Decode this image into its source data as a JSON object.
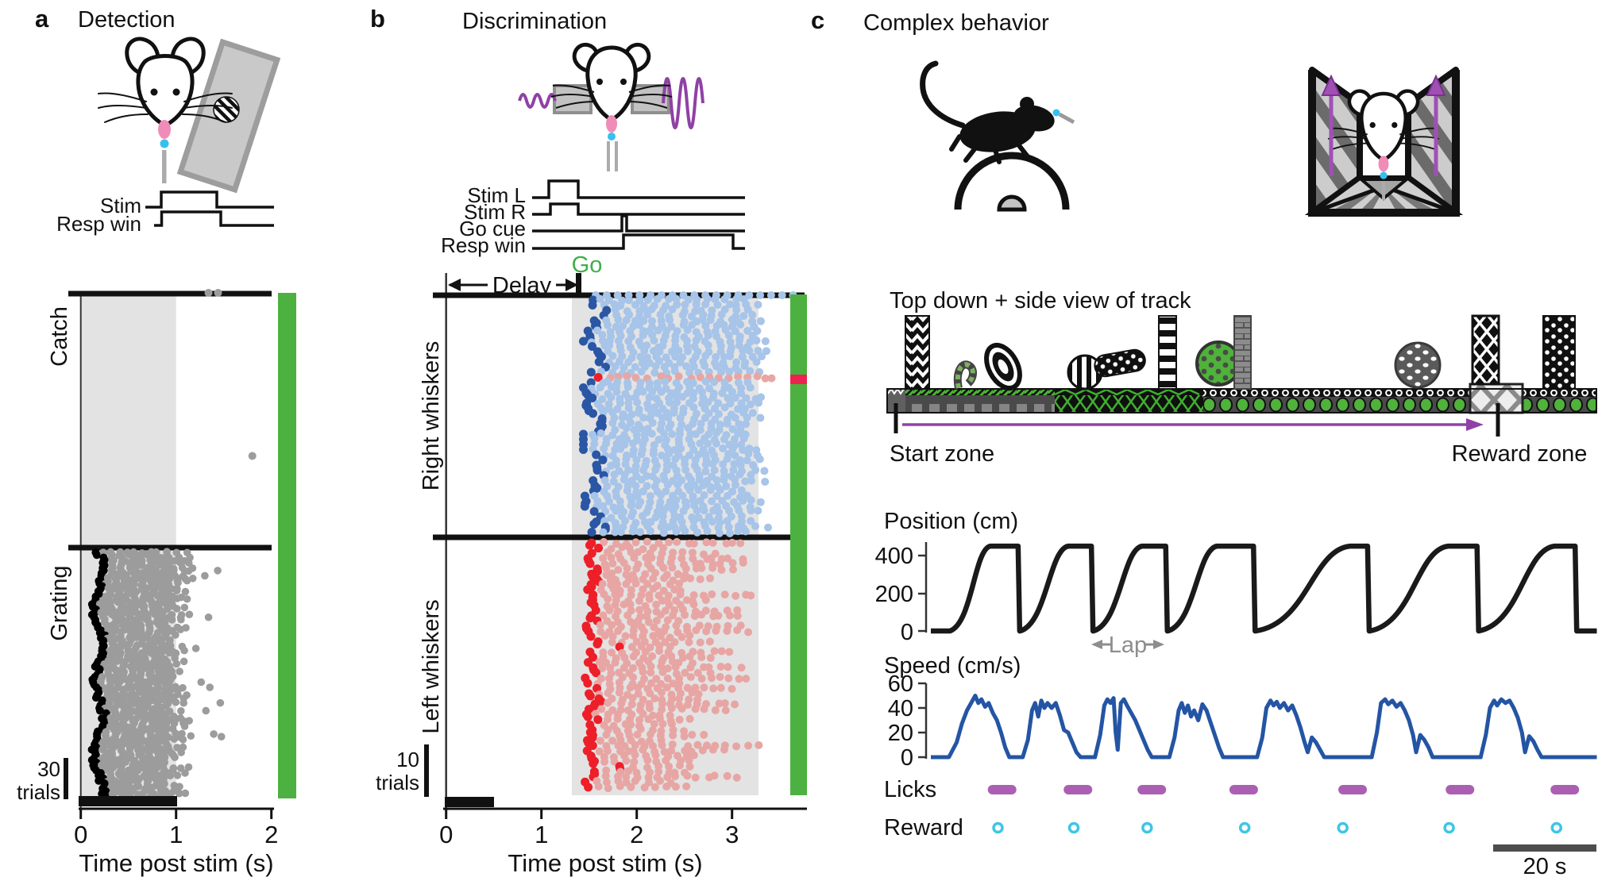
{
  "panels": {
    "a": {
      "letter": "a",
      "title": "Detection",
      "timing_labels": [
        "Stim",
        "Resp win"
      ],
      "section_labels": [
        "Catch",
        "Grating"
      ],
      "scale_bar": {
        "value": "30",
        "unit": "trials"
      },
      "x_ticks": [
        "0",
        "1",
        "2"
      ],
      "x_axis_label": "Time post stim (s)"
    },
    "b": {
      "letter": "b",
      "title": "Discrimination",
      "timing_labels": [
        "Stim L",
        "Stim R",
        "Go cue",
        "Resp win"
      ],
      "delay_label": "Delay",
      "go_label": "Go",
      "section_labels": [
        "Right whiskers",
        "Left whiskers"
      ],
      "scale_bar": {
        "value": "10",
        "unit": "trials"
      },
      "x_ticks": [
        "0",
        "1",
        "2",
        "3"
      ],
      "x_axis_label": "Time post stim (s)"
    },
    "c": {
      "letter": "c",
      "title": "Complex behavior",
      "track_caption": "Top down + side view of track",
      "start_zone_label": "Start zone",
      "reward_zone_label": "Reward zone",
      "position_label": "Position (cm)",
      "position_ticks": [
        "400",
        "200",
        "0"
      ],
      "lap_label": "Lap",
      "speed_label": "Speed (cm/s)",
      "speed_ticks": [
        "60",
        "40",
        "20",
        "0"
      ],
      "licks_label": "Licks",
      "reward_label": "Reward",
      "time_scale_label": "20 s"
    }
  },
  "colors": {
    "first_lick": "#000000",
    "later_lick": "#9C9C9C",
    "right_first": "#2A56A5",
    "right_later": "#A7C4E9",
    "left_first": "#ED1F28",
    "left_later": "#E7A6A4",
    "correct_bar": "#4CB140",
    "error_bar": "#EE2150",
    "shading": "#E3E3E3",
    "speed_trace": "#2455A4",
    "position_trace": "#1A1A1A",
    "lick_mark": "#AB5FB2",
    "reward_mark": "#3FC6E4",
    "stim_purple": "#8F41A5",
    "go_green": "#3FAF49",
    "tongue_pink": "#F08CB8",
    "water_cyan": "#35C0F0",
    "track_green": "#4FB23A",
    "annotation_gray": "#8E8E8E",
    "scalebar_gray": "#4D4D4D"
  },
  "chart_data": [
    {
      "id": "detection_raster",
      "type": "scatter",
      "title": "Detection",
      "x_label": "Time post stim (s)",
      "x_ticks": [
        0,
        1,
        2
      ],
      "x_max_s": 2.2,
      "stim_bar_s": [
        0,
        1
      ],
      "shaded_window_s": [
        0,
        1
      ],
      "sections": [
        {
          "label": "Catch",
          "trials": 185,
          "stray_dots_s": [
            [
              1.34,
              0.0
            ],
            [
              1.44,
              0.0
            ],
            [
              1.8,
              0.64
            ]
          ]
        },
        {
          "label": "Grating",
          "trials": 185,
          "first_lick_s": [
            0.16,
            0.3
          ],
          "inter_lick_s": 0.075,
          "bout_end_s": [
            0.88,
            1.2
          ],
          "outlier_rate": 0.09
        }
      ],
      "scale_bar": {
        "label": "30 trials",
        "trials": 30
      },
      "right_bar_meaning": "correct trials (green)"
    },
    {
      "id": "discrimination_raster",
      "type": "scatter",
      "title": "Discrimination",
      "x_label": "Time post stim (s)",
      "x_ticks": [
        0,
        1,
        2,
        3
      ],
      "x_max_s": 3.75,
      "stim_bar_s": [
        0,
        0.5
      ],
      "shaded_window_s": [
        1.32,
        3.28
      ],
      "delay_s": [
        0,
        1.4
      ],
      "go_s": 1.4,
      "sections": [
        {
          "label": "Right whiskers",
          "trials": 46,
          "first_lick_s": [
            1.44,
            1.92
          ],
          "inter_lick_s": 0.09,
          "bout_end_s": [
            3.15,
            3.43
          ],
          "error_trial_index": 15
        },
        {
          "label": "Left whiskers",
          "trials": 48,
          "first_lick_s": [
            1.45,
            1.75
          ],
          "inter_lick_s": 0.09,
          "bout_end_s": [
            2.3,
            3.3
          ],
          "late_first_lick_rows": [
            20,
            43
          ]
        }
      ],
      "scale_bar": {
        "label": "10 trials",
        "trials": 10
      },
      "right_bar_meaning": "correct trials (green), error trial (red)"
    },
    {
      "id": "complex_behavior",
      "type": "line",
      "duration_s": 129,
      "position": {
        "label": "Position (cm)",
        "yticks": [
          400,
          200,
          0
        ],
        "track_length_cm": 450,
        "laps_s": [
          {
            "ramp": [
              3.7,
              11.5
            ],
            "drop": 16.9
          },
          {
            "ramp": [
              17.3,
              26.6
            ],
            "drop": 31.1
          },
          {
            "ramp": [
              31.5,
              40.9
            ],
            "drop": 45.5
          },
          {
            "ramp": [
              45.9,
              55.4
            ],
            "drop": 62.5
          },
          {
            "ramp": [
              62.9,
              81.2
            ],
            "drop": 84.6
          },
          {
            "ramp": [
              85.0,
              100.2
            ],
            "drop": 105.8
          },
          {
            "ramp": [
              106.1,
              120.8
            ],
            "drop": 124.8
          }
        ]
      },
      "speed": {
        "label": "Speed (cm/s)",
        "yticks": [
          60,
          40,
          20,
          0
        ],
        "trace_s": [
          [
            0,
            0
          ],
          [
            3.5,
            0
          ],
          [
            5,
            12
          ],
          [
            6,
            27
          ],
          [
            7,
            38
          ],
          [
            7.8,
            44
          ],
          [
            8.6,
            50
          ],
          [
            9.2,
            44
          ],
          [
            9.8,
            47
          ],
          [
            10.5,
            41
          ],
          [
            11.2,
            44
          ],
          [
            12,
            36
          ],
          [
            12.8,
            30
          ],
          [
            13.6,
            20
          ],
          [
            14.4,
            8
          ],
          [
            15.2,
            0
          ],
          [
            17.8,
            0
          ],
          [
            18.8,
            14
          ],
          [
            19.6,
            38
          ],
          [
            20.2,
            44
          ],
          [
            20.8,
            33
          ],
          [
            21.4,
            46
          ],
          [
            22,
            40
          ],
          [
            22.6,
            44
          ],
          [
            23.4,
            40
          ],
          [
            24.2,
            44
          ],
          [
            25,
            34
          ],
          [
            25.8,
            22
          ],
          [
            26.6,
            20
          ],
          [
            27.4,
            12
          ],
          [
            28.2,
            4
          ],
          [
            29,
            0
          ],
          [
            31.8,
            0
          ],
          [
            32.8,
            18
          ],
          [
            33.6,
            42
          ],
          [
            34.2,
            47
          ],
          [
            34.8,
            44
          ],
          [
            35.4,
            48
          ],
          [
            35.8,
            20
          ],
          [
            36.2,
            6
          ],
          [
            36.8,
            44
          ],
          [
            37.4,
            47
          ],
          [
            38,
            42
          ],
          [
            38.8,
            36
          ],
          [
            39.6,
            30
          ],
          [
            40.4,
            22
          ],
          [
            41.2,
            14
          ],
          [
            42,
            6
          ],
          [
            42.8,
            0
          ],
          [
            46.2,
            0
          ],
          [
            47.2,
            16
          ],
          [
            48,
            38
          ],
          [
            48.6,
            44
          ],
          [
            49.2,
            36
          ],
          [
            49.8,
            42
          ],
          [
            50.4,
            33
          ],
          [
            51,
            38
          ],
          [
            51.8,
            30
          ],
          [
            52.6,
            43
          ],
          [
            53.4,
            38
          ],
          [
            54.2,
            28
          ],
          [
            55,
            18
          ],
          [
            55.8,
            8
          ],
          [
            56.6,
            0
          ],
          [
            63.2,
            0
          ],
          [
            64.2,
            16
          ],
          [
            65,
            40
          ],
          [
            65.8,
            46
          ],
          [
            66.4,
            42
          ],
          [
            67,
            45
          ],
          [
            67.6,
            40
          ],
          [
            68.4,
            44
          ],
          [
            69.2,
            38
          ],
          [
            70,
            42
          ],
          [
            70.8,
            34
          ],
          [
            71.6,
            24
          ],
          [
            72.4,
            12
          ],
          [
            73,
            4
          ],
          [
            73.8,
            16
          ],
          [
            74.6,
            12
          ],
          [
            75.4,
            6
          ],
          [
            76.2,
            0
          ],
          [
            85.4,
            0
          ],
          [
            86.4,
            20
          ],
          [
            87.2,
            44
          ],
          [
            88,
            47
          ],
          [
            88.6,
            43
          ],
          [
            89.4,
            46
          ],
          [
            90.2,
            41
          ],
          [
            91,
            44
          ],
          [
            91.8,
            38
          ],
          [
            92.6,
            30
          ],
          [
            93.4,
            18
          ],
          [
            94,
            4
          ],
          [
            94.8,
            18
          ],
          [
            95.6,
            14
          ],
          [
            96.4,
            8
          ],
          [
            97.2,
            0
          ],
          [
            106.5,
            0
          ],
          [
            107.5,
            18
          ],
          [
            108.3,
            40
          ],
          [
            109.1,
            46
          ],
          [
            109.7,
            42
          ],
          [
            110.5,
            47
          ],
          [
            111.3,
            44
          ],
          [
            112.1,
            46
          ],
          [
            112.9,
            40
          ],
          [
            113.7,
            32
          ],
          [
            114.5,
            20
          ],
          [
            115.1,
            4
          ],
          [
            115.9,
            17
          ],
          [
            116.7,
            13
          ],
          [
            117.5,
            6
          ],
          [
            118.3,
            0
          ],
          [
            129,
            0
          ]
        ]
      },
      "lap_annotation": {
        "label": "Lap",
        "from_s": 31.1,
        "to_s": 45.5
      },
      "licks_s": [
        13.8,
        28.5,
        42.8,
        60.6,
        81.7,
        102.5,
        122.8
      ],
      "rewards_s": [
        13.0,
        27.7,
        41.9,
        60.8,
        79.8,
        100.4,
        121.2
      ],
      "scale_bar": {
        "label": "20 s",
        "seconds": 20
      }
    }
  ]
}
